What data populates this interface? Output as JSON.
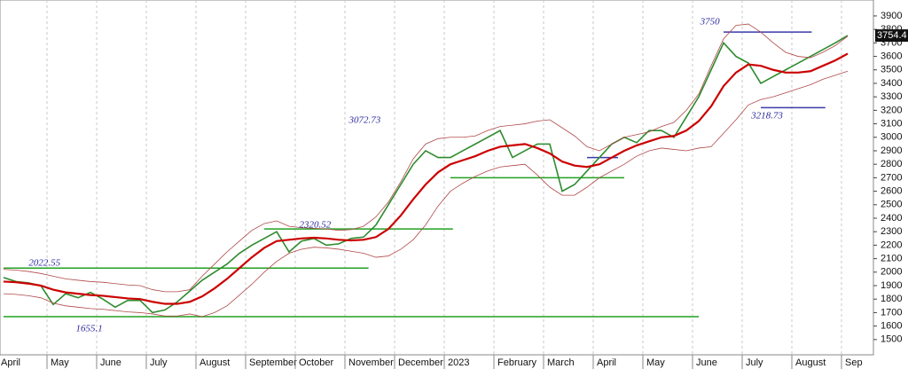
{
  "chart_data": {
    "type": "line",
    "categories": [
      "April",
      null,
      null,
      null,
      "May",
      null,
      null,
      null,
      "June",
      null,
      null,
      null,
      "July",
      null,
      null,
      null,
      "August",
      null,
      null,
      null,
      "September",
      null,
      null,
      null,
      "October",
      null,
      null,
      null,
      "November",
      null,
      null,
      null,
      "December",
      null,
      null,
      null,
      "2023",
      null,
      null,
      null,
      "February",
      null,
      null,
      null,
      "March",
      null,
      null,
      null,
      "April",
      null,
      null,
      null,
      "May",
      null,
      null,
      null,
      "June",
      null,
      null,
      null,
      "July",
      null,
      null,
      null,
      "August",
      null,
      null,
      null,
      "Sep"
    ],
    "series": [
      {
        "color": "#2e8b2e",
        "values": [
          1960,
          1930,
          1920,
          1900,
          1760,
          1840,
          1810,
          1850,
          1800,
          1740,
          1790,
          1790,
          1700,
          1720,
          1780,
          1860,
          1940,
          2000,
          2060,
          2140,
          2200,
          2250,
          2300,
          2150,
          2230,
          2250,
          2200,
          2210,
          2250,
          2260,
          2350,
          2500,
          2650,
          2800,
          2900,
          2850,
          2850,
          2900,
          2950,
          3000,
          3050,
          2850,
          2900,
          2950,
          2950,
          2600,
          2650,
          2750,
          2850,
          2950,
          3000,
          2960,
          3050,
          3050,
          3000,
          3150,
          3300,
          3500,
          3700,
          3600,
          3550,
          3400,
          3450,
          3500,
          3550,
          3600,
          3650,
          3700,
          3754.4
        ]
      },
      {
        "color": "#cc0000",
        "values": [
          1930,
          1925,
          1915,
          1900,
          1870,
          1850,
          1840,
          1830,
          1825,
          1815,
          1805,
          1800,
          1780,
          1765,
          1765,
          1780,
          1820,
          1880,
          1950,
          2030,
          2110,
          2180,
          2230,
          2240,
          2250,
          2255,
          2250,
          2240,
          2235,
          2240,
          2260,
          2320,
          2420,
          2540,
          2650,
          2740,
          2800,
          2830,
          2860,
          2900,
          2930,
          2940,
          2950,
          2920,
          2880,
          2820,
          2790,
          2780,
          2800,
          2850,
          2900,
          2940,
          2970,
          3000,
          3010,
          3050,
          3120,
          3230,
          3380,
          3480,
          3540,
          3530,
          3500,
          3480,
          3480,
          3490,
          3530,
          3570,
          3620
        ]
      },
      {
        "color": "#b04848",
        "values": [
          2020,
          2015,
          2005,
          1990,
          1970,
          1950,
          1940,
          1930,
          1925,
          1915,
          1905,
          1900,
          1870,
          1855,
          1855,
          1870,
          1970,
          2060,
          2150,
          2230,
          2310,
          2360,
          2380,
          2340,
          2330,
          2325,
          2320,
          2310,
          2315,
          2340,
          2410,
          2520,
          2670,
          2840,
          2950,
          2990,
          3000,
          3000,
          3010,
          3050,
          3080,
          3090,
          3100,
          3120,
          3130,
          3070,
          3010,
          2930,
          2900,
          2950,
          3000,
          3020,
          3040,
          3080,
          3110,
          3200,
          3320,
          3530,
          3730,
          3830,
          3840,
          3780,
          3700,
          3630,
          3600,
          3590,
          3630,
          3680,
          3750
        ]
      },
      {
        "color": "#b04848",
        "values": [
          1840,
          1835,
          1825,
          1810,
          1770,
          1750,
          1740,
          1730,
          1725,
          1715,
          1705,
          1700,
          1690,
          1675,
          1675,
          1690,
          1670,
          1700,
          1750,
          1830,
          1910,
          2000,
          2080,
          2140,
          2170,
          2185,
          2180,
          2170,
          2155,
          2140,
          2110,
          2120,
          2170,
          2240,
          2350,
          2490,
          2600,
          2660,
          2710,
          2750,
          2780,
          2790,
          2800,
          2720,
          2630,
          2570,
          2570,
          2630,
          2700,
          2750,
          2800,
          2860,
          2900,
          2920,
          2910,
          2900,
          2920,
          2930,
          3030,
          3130,
          3240,
          3280,
          3300,
          3330,
          3360,
          3390,
          3430,
          3460,
          3490
        ]
      }
    ],
    "levels": [
      {
        "value": 2030,
        "start": 0,
        "end": 29.4,
        "color": "#22a022"
      },
      {
        "value": 1670,
        "start": 0,
        "end": 56,
        "color": "#22a022"
      },
      {
        "value": 2700,
        "start": 36,
        "end": 50,
        "color": "#22a022"
      },
      {
        "value": 2320,
        "start": 21,
        "end": 36.2,
        "color": "#22a022"
      },
      {
        "value": 3780,
        "start": 58,
        "end": 65.1,
        "color": "#3a3aa8"
      },
      {
        "value": 3220,
        "start": 61,
        "end": 66.2,
        "color": "#3a3aa8"
      },
      {
        "value": 2850,
        "start": 47,
        "end": 49.5,
        "color": "#3a3aa8"
      }
    ],
    "annotations": [
      {
        "text": "2022.55",
        "x": 3.3,
        "y": 2065
      },
      {
        "text": "1655.1",
        "x": 6.9,
        "y": 1578
      },
      {
        "text": "2320.52",
        "x": 25.1,
        "y": 2347
      },
      {
        "text": "3072.73",
        "x": 29.1,
        "y": 3124
      },
      {
        "text": "3750",
        "x": 56.9,
        "y": 3854
      },
      {
        "text": "3218.73",
        "x": 61.5,
        "y": 3157
      }
    ],
    "last_price": 3754.4,
    "ylim": [
      1387,
      4018
    ],
    "yticks": [
      1500,
      1600,
      1700,
      1800,
      1900,
      2000,
      2100,
      2200,
      2300,
      2400,
      2500,
      2600,
      2700,
      2800,
      2900,
      3000,
      3100,
      3200,
      3300,
      3400,
      3500,
      3600,
      3700,
      3800,
      3900
    ],
    "grid": true
  }
}
